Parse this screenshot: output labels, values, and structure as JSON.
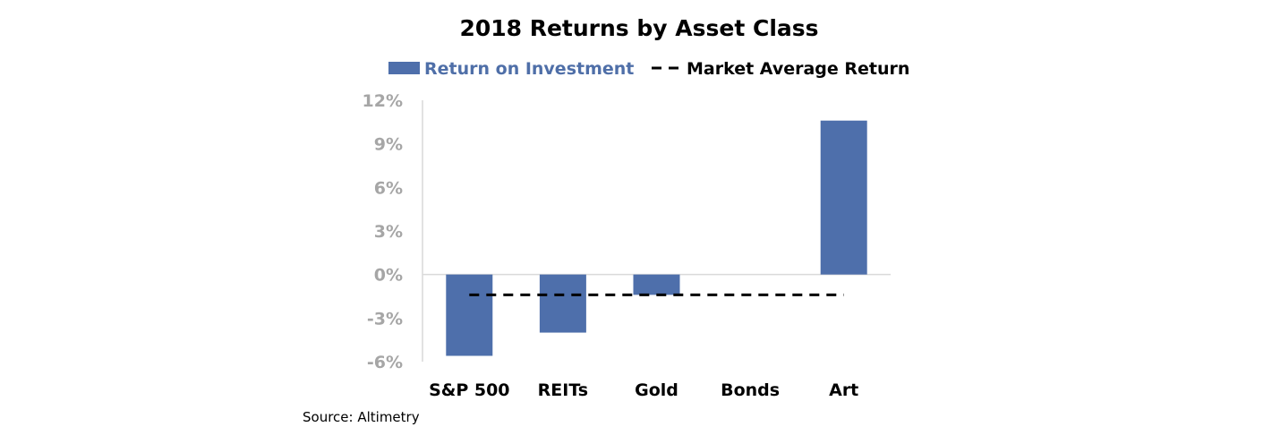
{
  "chart_data": {
    "type": "bar",
    "title": "2018 Returns by Asset Class",
    "categories": [
      "S&P 500",
      "REITs",
      "Gold",
      "Bonds",
      "Art"
    ],
    "series": [
      {
        "name": "Return on Investment",
        "values": [
          -5.6,
          -4.0,
          -1.4,
          0.0,
          10.6
        ]
      }
    ],
    "reference_line": {
      "name": "Market Average Return",
      "value": -1.4,
      "style": "dashed"
    },
    "ylim": [
      -6,
      12
    ],
    "yticks": [
      "12%",
      "9%",
      "6%",
      "3%",
      "0%",
      "-3%",
      "-6%"
    ],
    "ytick_values": [
      12,
      9,
      6,
      3,
      0,
      -3,
      -6
    ],
    "legend_position": "top",
    "grid": false,
    "source": "Source: Altimetry",
    "colors": {
      "bar": "#4e6fab",
      "line": "#000000",
      "ytick": "#a6a6a6",
      "axis": "#d9d9d9"
    }
  }
}
